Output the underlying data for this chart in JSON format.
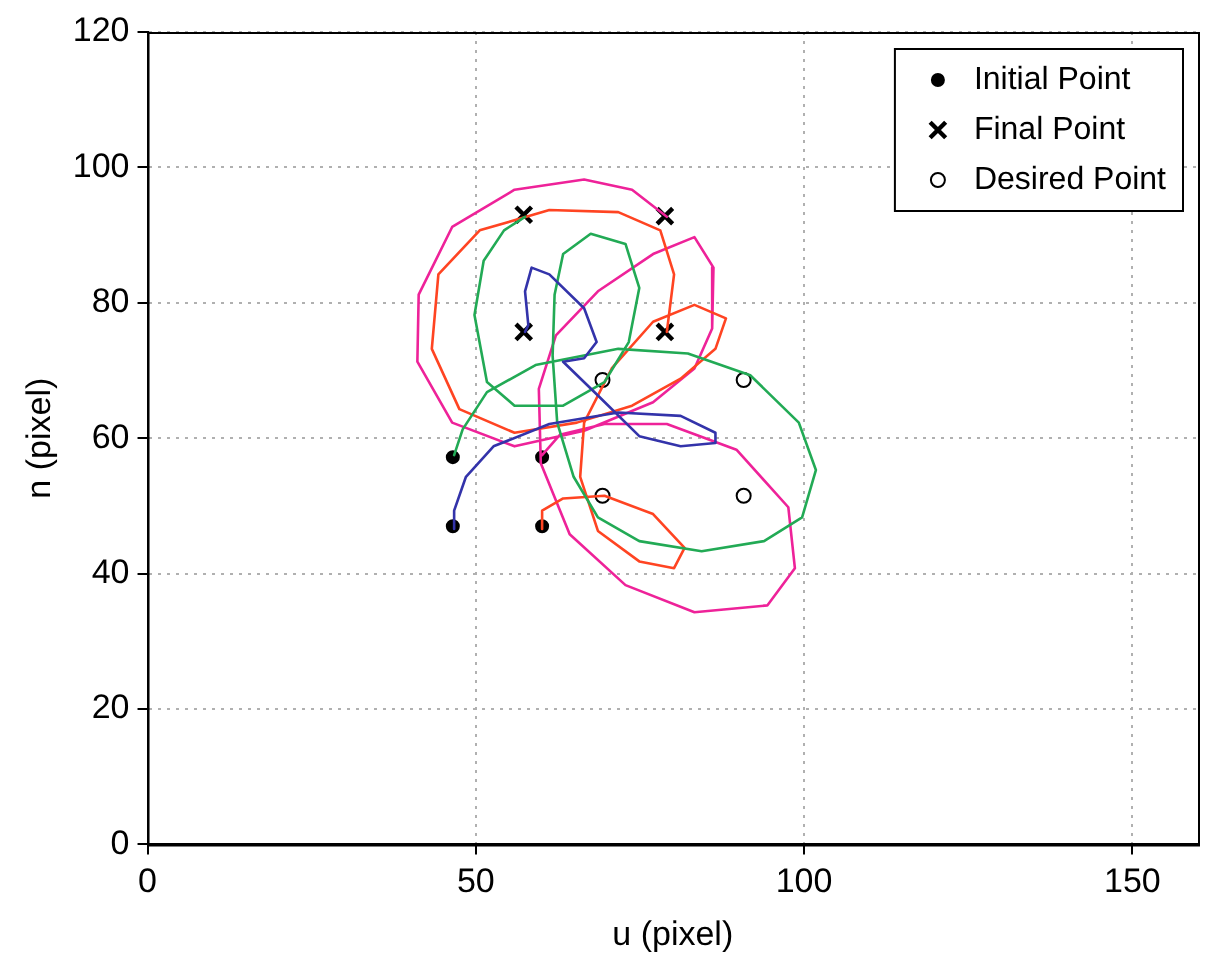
{
  "chart_data": {
    "type": "line",
    "xlabel": "u (pixel)",
    "ylabel": "n (pixel)",
    "xlim": [
      0,
      160
    ],
    "xticks": [
      0,
      50,
      100,
      150
    ],
    "ylim": [
      0,
      120
    ],
    "yticks": [
      0,
      20,
      40,
      60,
      80,
      100,
      120
    ],
    "grid": true,
    "legend": "top right",
    "series": [
      {
        "type": "line",
        "color": "#3333aa",
        "marker": "none",
        "x": [
          46.7,
          46.7,
          48.5,
          52.7,
          61.2,
          71.7,
          81.2,
          86.5,
          86.5,
          81.2,
          74.9,
          68.6,
          63.3,
          66.5,
          68.4,
          66.5,
          61.2,
          58.5,
          57.5,
          58.0,
          57.5
        ],
        "values": [
          46.6,
          49.3,
          54.3,
          58.8,
          62.1,
          63.8,
          63.3,
          60.8,
          59.3,
          58.8,
          60.3,
          66.3,
          71.3,
          71.8,
          74.2,
          79.2,
          84.2,
          85.2,
          81.7,
          76.7,
          75.7
        ]
      },
      {
        "type": "line",
        "color": "#22aa55",
        "marker": "none",
        "x": [
          46.7,
          48.0,
          51.7,
          59.1,
          71.7,
          82.3,
          91.8,
          99.2,
          101.8,
          99.7,
          93.9,
          84.4,
          74.9,
          68.6,
          64.9,
          62.4,
          61.7,
          62.0,
          63.3,
          67.5,
          72.8,
          74.9,
          73.3,
          69.6,
          63.3,
          55.9,
          51.7,
          49.8,
          51.2,
          54.3,
          57.5
        ],
        "values": [
          57.5,
          61.3,
          66.8,
          70.8,
          73.2,
          72.5,
          69.3,
          62.3,
          55.3,
          48.3,
          44.8,
          43.3,
          44.8,
          48.3,
          54.3,
          62.3,
          72.2,
          81.2,
          87.2,
          90.2,
          88.7,
          82.2,
          74.2,
          68.3,
          64.8,
          64.8,
          68.3,
          78.2,
          86.2,
          90.7,
          92.7
        ]
      },
      {
        "type": "line",
        "color": "#ff4422",
        "marker": "none",
        "x": [
          60.1,
          60.1,
          63.3,
          69.6,
          77.0,
          81.8,
          80.2,
          74.9,
          68.6,
          65.9,
          66.5,
          70.7,
          77.0,
          83.3,
          88.1,
          86.5,
          81.2,
          73.8,
          65.4,
          55.9,
          47.5,
          43.3,
          44.3,
          50.6,
          61.2,
          71.7,
          78.1,
          80.2,
          79.1
        ],
        "values": [
          46.6,
          49.3,
          51.1,
          51.5,
          48.8,
          43.8,
          40.8,
          41.8,
          46.3,
          54.3,
          62.3,
          70.3,
          77.2,
          79.7,
          77.7,
          73.2,
          68.8,
          64.8,
          62.3,
          60.8,
          64.3,
          73.2,
          84.2,
          90.7,
          93.7,
          93.4,
          90.7,
          84.2,
          75.7
        ]
      },
      {
        "type": "line",
        "color": "#ee2299",
        "marker": "none",
        "x": [
          60.1,
          62.8,
          69.6,
          79.1,
          89.7,
          97.6,
          98.6,
          94.4,
          83.3,
          72.8,
          64.3,
          59.9,
          59.6,
          62.2,
          68.6,
          77.0,
          83.3,
          86.2,
          86.0,
          83.3,
          77.0,
          66.5,
          55.9,
          46.4,
          41.1,
          41.3,
          46.4,
          55.9,
          66.5,
          73.8,
          79.1
        ],
        "values": [
          57.5,
          60.5,
          62.1,
          62.1,
          58.3,
          49.8,
          40.8,
          35.3,
          34.3,
          38.3,
          45.8,
          56.3,
          67.3,
          75.2,
          81.7,
          87.2,
          89.7,
          85.2,
          76.2,
          70.3,
          65.3,
          61.1,
          58.8,
          62.3,
          71.3,
          81.2,
          91.2,
          96.7,
          98.2,
          96.7,
          92.7
        ]
      },
      {
        "type": "scatter",
        "name": "Initial Point",
        "color": "#000000",
        "marker": "circle",
        "x": [
          46.5,
          46.5,
          60.1,
          60.1
        ],
        "values": [
          47.0,
          57.2,
          47.0,
          57.2
        ]
      },
      {
        "type": "scatter",
        "name": "Final Point",
        "color": "#000000",
        "marker": "cross",
        "x": [
          57.3,
          78.8,
          57.3,
          78.8
        ],
        "values": [
          93.0,
          92.8,
          75.7,
          75.7
        ]
      },
      {
        "type": "scatter",
        "name": "Desired Point",
        "color": "#000000",
        "marker": "open circle",
        "x": [
          69.3,
          90.8,
          69.3,
          90.8
        ],
        "values": [
          68.6,
          68.6,
          51.5,
          51.5
        ]
      }
    ]
  }
}
